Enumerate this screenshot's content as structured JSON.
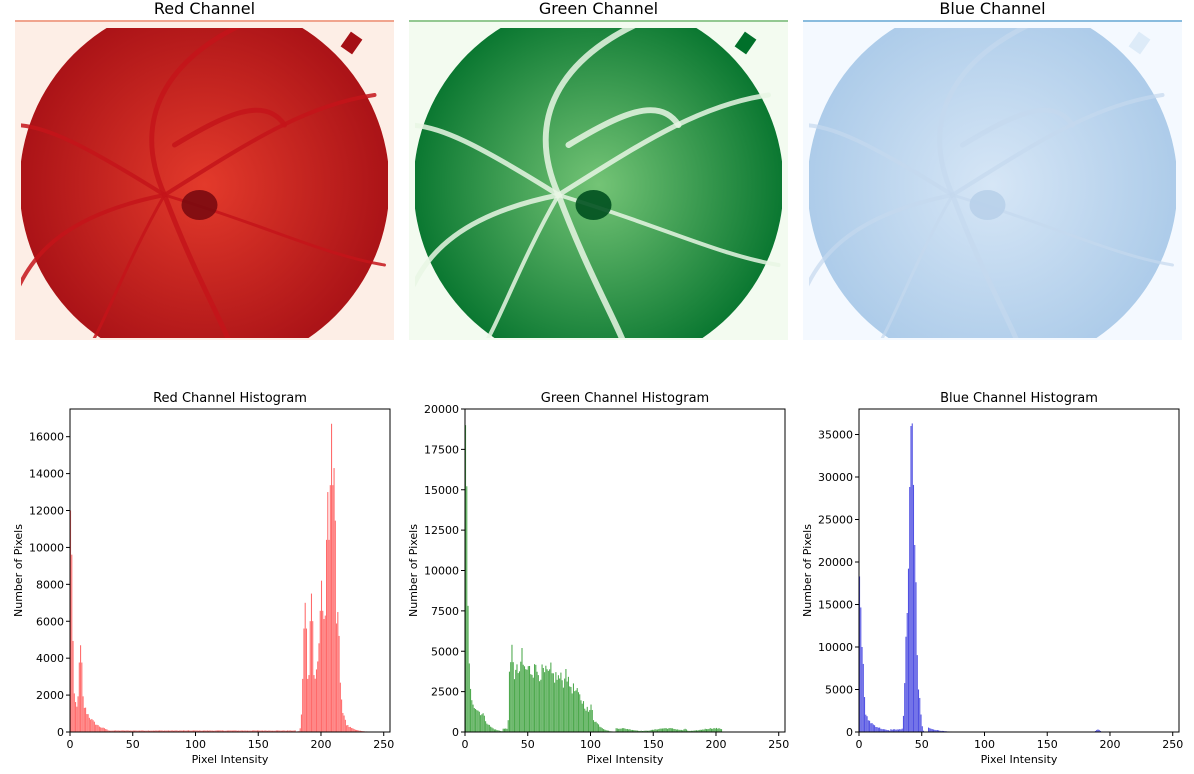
{
  "chart_data": [
    {
      "type": "image",
      "title": "Red Channel",
      "colormap": "Reds",
      "accent": "#e8785a",
      "colors": {
        "light": "#fdeee6",
        "mid": "#e33a2b",
        "dark": "#a50f15"
      }
    },
    {
      "type": "image",
      "title": "Green Channel",
      "colormap": "Greens",
      "accent": "#5aaa5a",
      "colors": {
        "light": "#f3fbf0",
        "mid": "#74c476",
        "dark": "#00702a"
      }
    },
    {
      "type": "image",
      "title": "Blue Channel",
      "colormap": "Blues",
      "accent": "#4a98c9",
      "colors": {
        "light": "#f4f9ff",
        "mid": "#d6e6f6",
        "dark": "#a9c9e8"
      }
    },
    {
      "type": "bar",
      "title": "Red Channel Histogram",
      "xlabel": "Pixel Intensity",
      "ylabel": "Number of Pixels",
      "xlim": [
        0,
        255
      ],
      "ylim": [
        0,
        17500
      ],
      "xticks": [
        0,
        50,
        100,
        150,
        200,
        250
      ],
      "yticks": [
        0,
        2000,
        4000,
        6000,
        8000,
        10000,
        12000,
        14000,
        16000
      ],
      "color": "#ff5050",
      "grid": false,
      "peaks": [
        {
          "x": 0,
          "y": 12000
        },
        {
          "x": 1,
          "y": 3400
        },
        {
          "x": 8,
          "y": 4700
        },
        {
          "x": 187,
          "y": 7000
        },
        {
          "x": 192,
          "y": 7500
        },
        {
          "x": 200,
          "y": 8200
        },
        {
          "x": 205,
          "y": 13000
        },
        {
          "x": 208,
          "y": 16700
        },
        {
          "x": 210,
          "y": 14300
        },
        {
          "x": 213,
          "y": 6500
        }
      ]
    },
    {
      "type": "bar",
      "title": "Green Channel Histogram",
      "xlabel": "Pixel Intensity",
      "ylabel": "Number of Pixels",
      "xlim": [
        0,
        255
      ],
      "ylim": [
        0,
        20000
      ],
      "xticks": [
        0,
        50,
        100,
        150,
        200,
        250
      ],
      "yticks": [
        0,
        2500,
        5000,
        7500,
        10000,
        12500,
        15000,
        17500,
        20000
      ],
      "color": "#2e9a2e",
      "grid": false,
      "peaks": [
        {
          "x": 0,
          "y": 19000
        },
        {
          "x": 1,
          "y": 8400
        },
        {
          "x": 2,
          "y": 5300
        },
        {
          "x": 37,
          "y": 5400
        },
        {
          "x": 45,
          "y": 5200
        },
        {
          "x": 55,
          "y": 4200
        },
        {
          "x": 68,
          "y": 4300
        },
        {
          "x": 80,
          "y": 3900
        },
        {
          "x": 100,
          "y": 1700
        },
        {
          "x": 175,
          "y": 200
        }
      ]
    },
    {
      "type": "bar",
      "title": "Blue Channel Histogram",
      "xlabel": "Pixel Intensity",
      "ylabel": "Number of Pixels",
      "xlim": [
        0,
        255
      ],
      "ylim": [
        0,
        38000
      ],
      "xticks": [
        0,
        50,
        100,
        150,
        200,
        250
      ],
      "yticks": [
        0,
        5000,
        10000,
        15000,
        20000,
        25000,
        30000,
        35000
      ],
      "color": "#3333dd",
      "grid": false,
      "peaks": [
        {
          "x": 0,
          "y": 18300
        },
        {
          "x": 2,
          "y": 10000
        },
        {
          "x": 3,
          "y": 4000
        },
        {
          "x": 38,
          "y": 14000
        },
        {
          "x": 40,
          "y": 24000
        },
        {
          "x": 41,
          "y": 36000
        },
        {
          "x": 42,
          "y": 36300
        },
        {
          "x": 44,
          "y": 22000
        },
        {
          "x": 47,
          "y": 5000
        },
        {
          "x": 190,
          "y": 300
        }
      ]
    }
  ]
}
